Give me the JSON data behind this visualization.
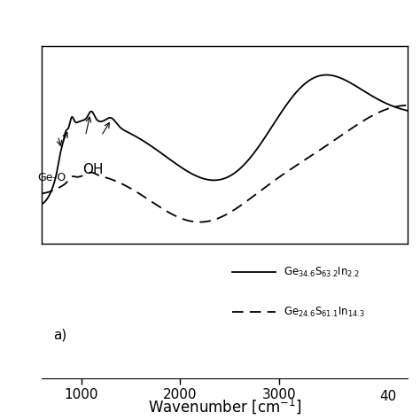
{
  "background_color": "#ffffff",
  "annotation_geo": "Ge-O",
  "annotation_oh": "OH",
  "panel_label": "a)",
  "legend_line1": "Ge$_{34.6}$S$_{63.2}$In$_{2.2}$",
  "legend_line2": "Ge$_{24.6}$S$_{61.1}$In$_{14.3}$",
  "xlabel": "Wavenumber [cm$^{-1}$]",
  "xlim": [
    600,
    4300
  ],
  "xticks": [
    1000,
    2000,
    3000
  ],
  "xtick_labels": [
    "1000",
    "2000",
    "3000"
  ],
  "xtick_extra_label": "40",
  "xtick_extra_x": 4100
}
